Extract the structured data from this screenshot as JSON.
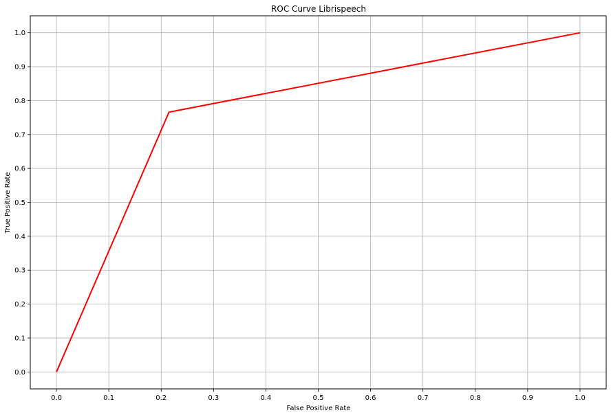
{
  "chart_data": {
    "type": "line",
    "title": "ROC Curve Librispeech",
    "xlabel": "False Positive Rate",
    "ylabel": "True Positive Rate",
    "xlim": [
      -0.05,
      1.05
    ],
    "ylim": [
      -0.05,
      1.05
    ],
    "xticks": [
      "0.0",
      "0.1",
      "0.2",
      "0.3",
      "0.4",
      "0.5",
      "0.6",
      "0.7",
      "0.8",
      "0.9",
      "1.0"
    ],
    "yticks": [
      "0.0",
      "0.1",
      "0.2",
      "0.3",
      "0.4",
      "0.5",
      "0.6",
      "0.7",
      "0.8",
      "0.9",
      "1.0"
    ],
    "grid": true,
    "series": [
      {
        "color": "#ff0000",
        "x": [
          0.0,
          0.215,
          1.0
        ],
        "y": [
          0.0,
          0.766,
          1.0
        ]
      }
    ]
  }
}
